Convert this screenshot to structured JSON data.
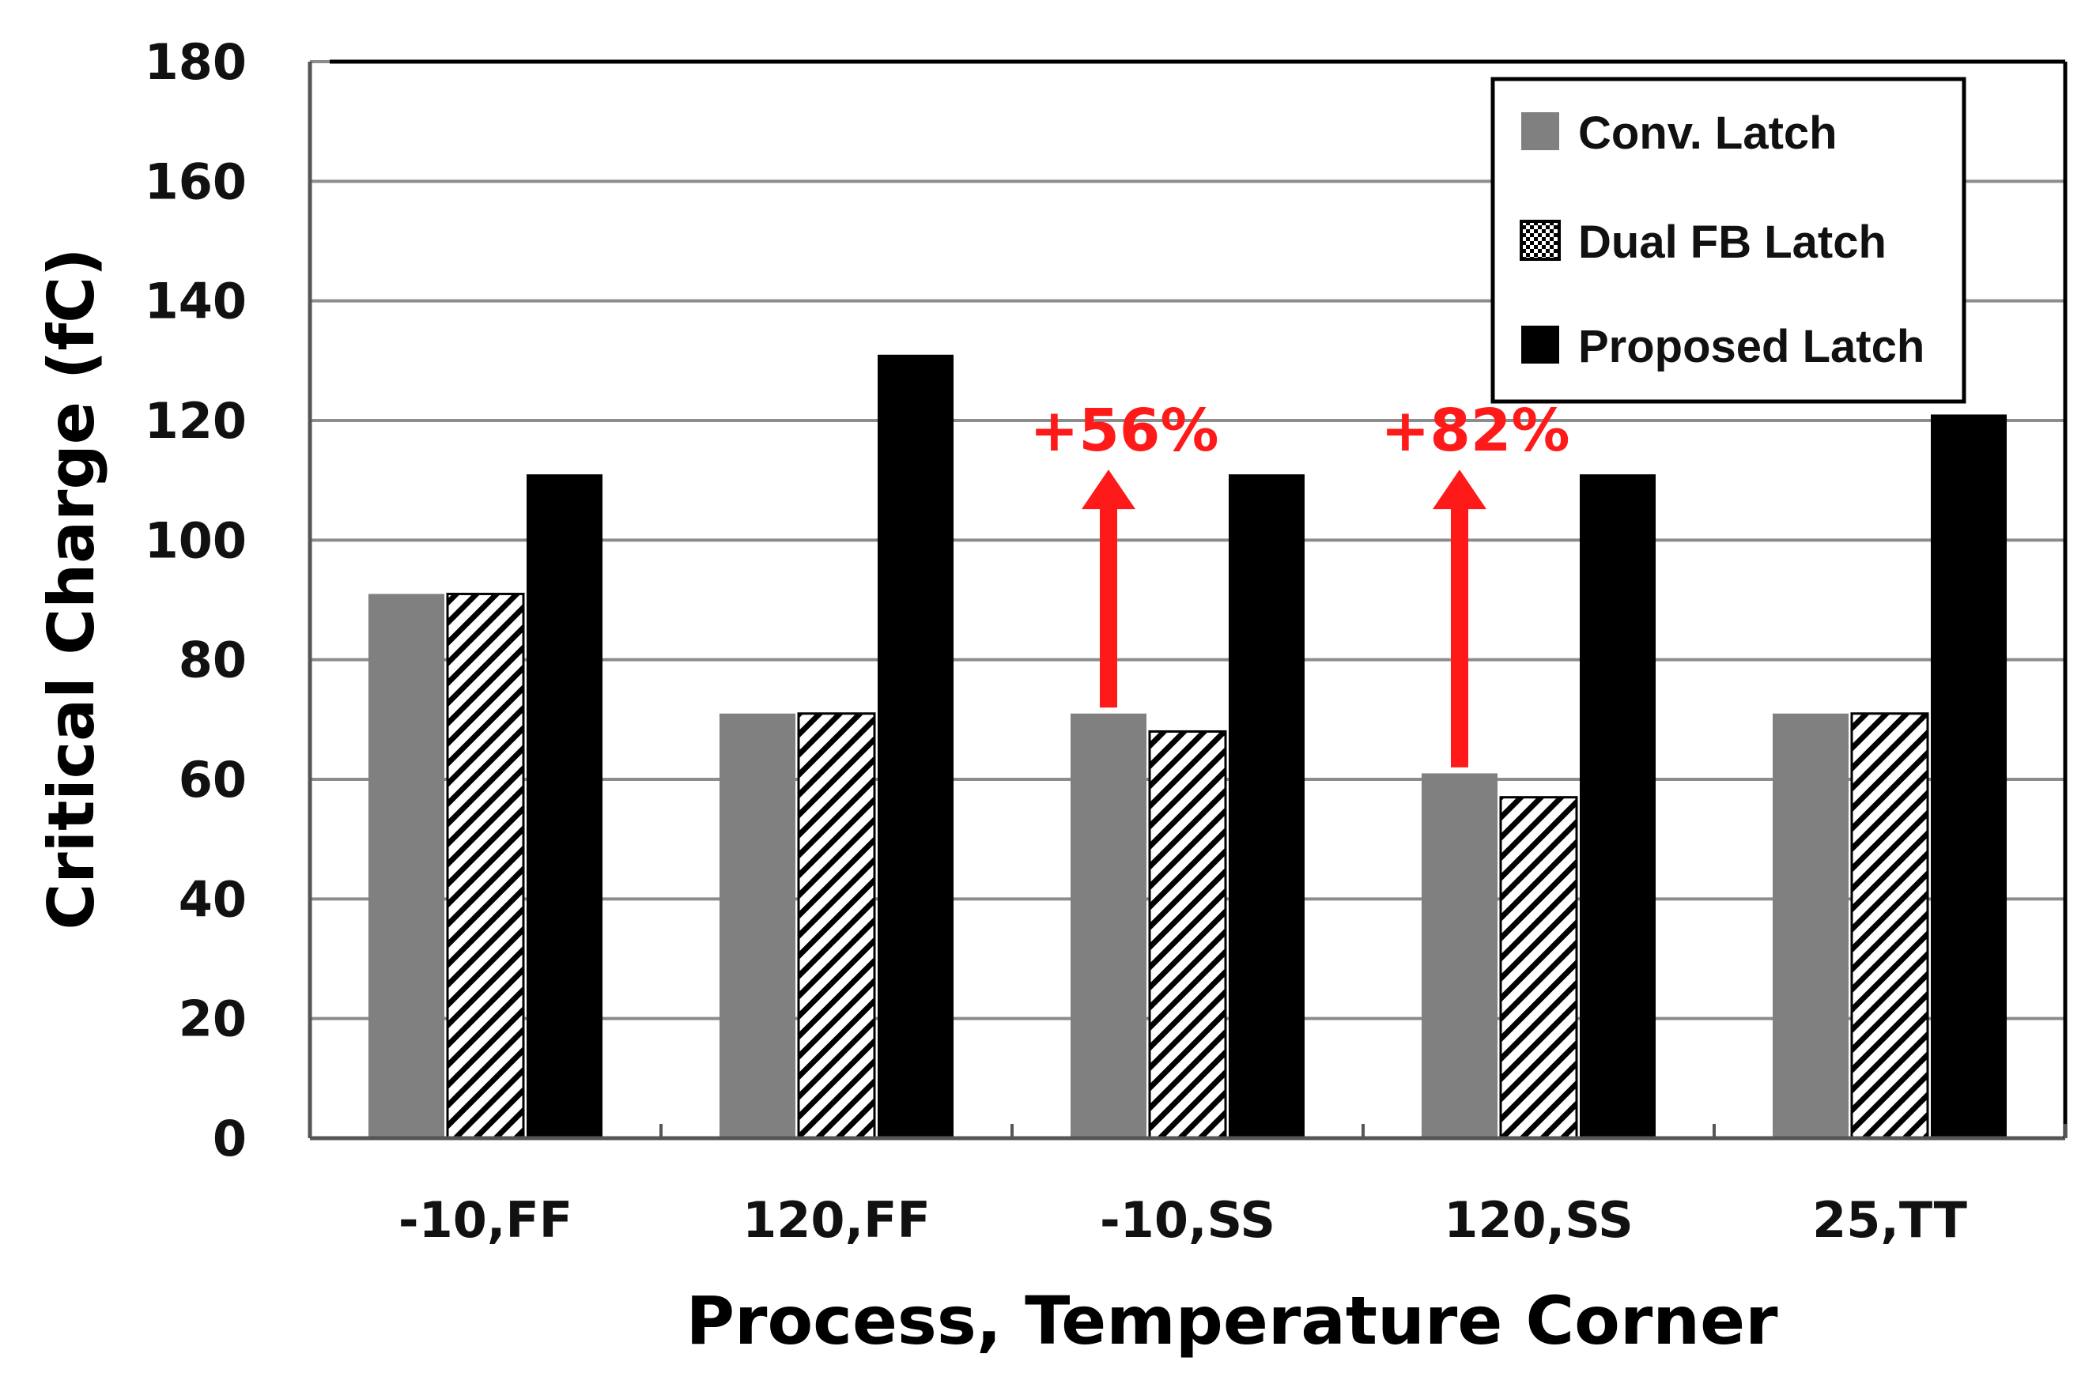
{
  "chart_data": {
    "type": "bar",
    "title": "",
    "xlabel": "Process, Temperature Corner",
    "ylabel": "Critical Charge (fC)",
    "ylim": [
      0,
      180
    ],
    "yticks": [
      "0",
      "20",
      "40",
      "60",
      "80",
      "100",
      "120",
      "140",
      "160",
      "180"
    ],
    "grid": true,
    "legend_position": "top-right",
    "categories": [
      "-10,FF",
      "120,FF",
      "-10,SS",
      "120,SS",
      "25,TT"
    ],
    "series": [
      {
        "name": "Conv. Latch",
        "style": "solid-gray",
        "color": "#808080",
        "values": [
          91,
          71,
          71,
          61,
          71
        ]
      },
      {
        "name": "Dual FB Latch",
        "style": "hatched",
        "color": "#ffffff",
        "values": [
          91,
          71,
          68,
          57,
          71
        ]
      },
      {
        "name": "Proposed Latch",
        "style": "solid-black",
        "color": "#000000",
        "values": [
          111,
          131,
          111,
          111,
          121
        ]
      }
    ],
    "annotations": [
      {
        "text": "+56%",
        "category": "-10,SS",
        "from": 72,
        "to": 111,
        "color": "#ff1a1a"
      },
      {
        "text": "+82%",
        "category": "120,SS",
        "from": 62,
        "to": 111,
        "color": "#ff1a1a"
      }
    ]
  }
}
